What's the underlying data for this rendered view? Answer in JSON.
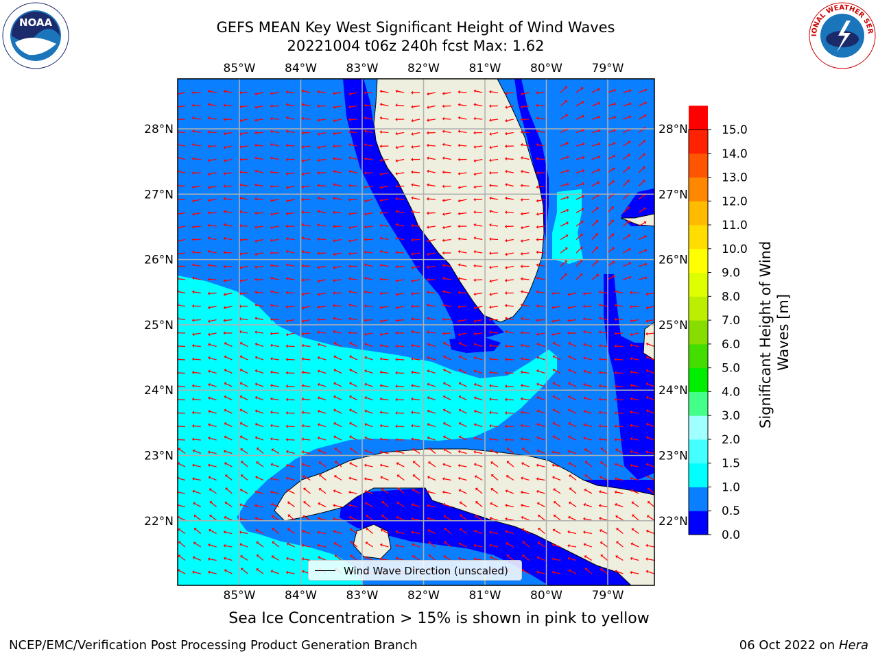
{
  "title": {
    "line1": "GEFS MEAN Key West Significant Height of Wind Waves",
    "line2": "20221004 t06z 240h fcst   Max: 1.62"
  },
  "axes": {
    "lon_labels": [
      "85°W",
      "84°W",
      "83°W",
      "82°W",
      "81°W",
      "80°W",
      "79°W"
    ],
    "lat_labels": [
      "28°N",
      "27°N",
      "26°N",
      "25°N",
      "24°N",
      "23°N",
      "22°N"
    ]
  },
  "colorbar": {
    "label": "Significant Height of Wind Waves [m]",
    "ticks": [
      "15.0",
      "14.0",
      "13.0",
      "12.0",
      "11.0",
      "10.0",
      "9.0",
      "8.0",
      "7.0",
      "6.0",
      "5.0",
      "4.0",
      "3.0",
      "2.0",
      "1.5",
      "1.0",
      "0.5",
      "0.0"
    ],
    "colors": [
      "#0000ff",
      "#0a7fff",
      "#00ffff",
      "#44ffff",
      "#a0ffff",
      "#44ff88",
      "#00ee00",
      "#44dd00",
      "#88dd00",
      "#bbee00",
      "#ddff00",
      "#ffff00",
      "#ffdd00",
      "#ffbb00",
      "#ff8800",
      "#ff5500",
      "#ff2200",
      "#ff0000"
    ]
  },
  "legend": {
    "label": "Wind Wave Direction (unscaled)"
  },
  "map_colors": {
    "ocean_level_0_0p5": "#0000ff",
    "ocean_level_0p5_1": "#0a7fff",
    "ocean_level_1_1p5": "#00ffff",
    "land": "#efefdf",
    "grid": "#b0b0b0",
    "arrow": "#ff0000"
  },
  "footnote": "Sea Ice Concentration > 15% is shown in pink to yellow",
  "footer": {
    "left": "NCEP/EMC/Verification Post Processing Product Generation Branch",
    "right_date": "06 Oct 2022 on ",
    "right_host": "Hera"
  },
  "logos": {
    "left": "NOAA",
    "right": "NATIONAL WEATHER SERVICE"
  }
}
